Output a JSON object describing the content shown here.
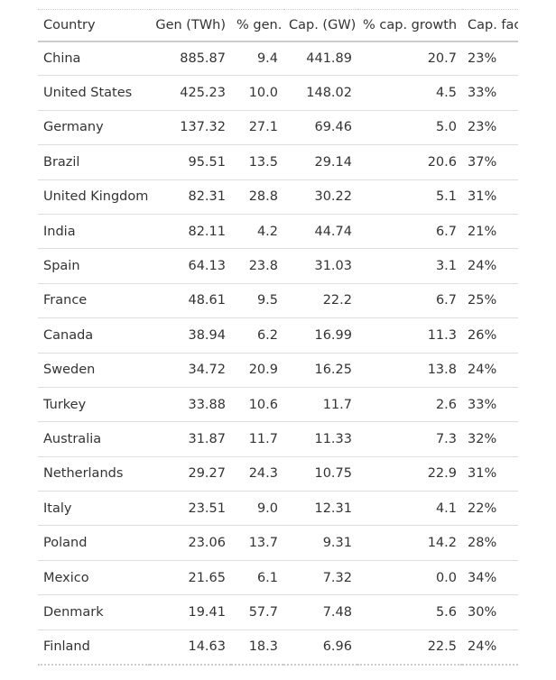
{
  "table": {
    "headers": [
      "Country",
      "Gen (TWh)",
      "% gen.",
      "Cap. (GW)",
      "% cap. growth",
      "Cap. fac."
    ],
    "rows": [
      {
        "country": "China",
        "gen": "885.87",
        "pct_gen": "9.4",
        "cap": "441.89",
        "cap_growth": "20.7",
        "cap_fac": "23%"
      },
      {
        "country": "United States",
        "gen": "425.23",
        "pct_gen": "10.0",
        "cap": "148.02",
        "cap_growth": "4.5",
        "cap_fac": "33%"
      },
      {
        "country": "Germany",
        "gen": "137.32",
        "pct_gen": "27.1",
        "cap": "69.46",
        "cap_growth": "5.0",
        "cap_fac": "23%"
      },
      {
        "country": "Brazil",
        "gen": "95.51",
        "pct_gen": "13.5",
        "cap": "29.14",
        "cap_growth": "20.6",
        "cap_fac": "37%"
      },
      {
        "country": "United Kingdom",
        "gen": "82.31",
        "pct_gen": "28.8",
        "cap": "30.22",
        "cap_growth": "5.1",
        "cap_fac": "31%"
      },
      {
        "country": "India",
        "gen": "82.11",
        "pct_gen": "4.2",
        "cap": "44.74",
        "cap_growth": "6.7",
        "cap_fac": "21%"
      },
      {
        "country": "Spain",
        "gen": "64.13",
        "pct_gen": "23.8",
        "cap": "31.03",
        "cap_growth": "3.1",
        "cap_fac": "24%"
      },
      {
        "country": "France",
        "gen": "48.61",
        "pct_gen": "9.5",
        "cap": "22.2",
        "cap_growth": "6.7",
        "cap_fac": "25%"
      },
      {
        "country": "Canada",
        "gen": "38.94",
        "pct_gen": "6.2",
        "cap": "16.99",
        "cap_growth": "11.3",
        "cap_fac": "26%"
      },
      {
        "country": "Sweden",
        "gen": "34.72",
        "pct_gen": "20.9",
        "cap": "16.25",
        "cap_growth": "13.8",
        "cap_fac": "24%"
      },
      {
        "country": "Turkey",
        "gen": "33.88",
        "pct_gen": "10.6",
        "cap": "11.7",
        "cap_growth": "2.6",
        "cap_fac": "33%"
      },
      {
        "country": "Australia",
        "gen": "31.87",
        "pct_gen": "11.7",
        "cap": "11.33",
        "cap_growth": "7.3",
        "cap_fac": "32%"
      },
      {
        "country": "Netherlands",
        "gen": "29.27",
        "pct_gen": "24.3",
        "cap": "10.75",
        "cap_growth": "22.9",
        "cap_fac": "31%"
      },
      {
        "country": "Italy",
        "gen": "23.51",
        "pct_gen": "9.0",
        "cap": "12.31",
        "cap_growth": "4.1",
        "cap_fac": "22%"
      },
      {
        "country": "Poland",
        "gen": "23.06",
        "pct_gen": "13.7",
        "cap": "9.31",
        "cap_growth": "14.2",
        "cap_fac": "28%"
      },
      {
        "country": "Mexico",
        "gen": "21.65",
        "pct_gen": "6.1",
        "cap": "7.32",
        "cap_growth": "0.0",
        "cap_fac": "34%"
      },
      {
        "country": "Denmark",
        "gen": "19.41",
        "pct_gen": "57.7",
        "cap": "7.48",
        "cap_growth": "5.6",
        "cap_fac": "30%"
      },
      {
        "country": "Finland",
        "gen": "14.63",
        "pct_gen": "18.3",
        "cap": "6.96",
        "cap_growth": "22.5",
        "cap_fac": "24%"
      }
    ]
  }
}
